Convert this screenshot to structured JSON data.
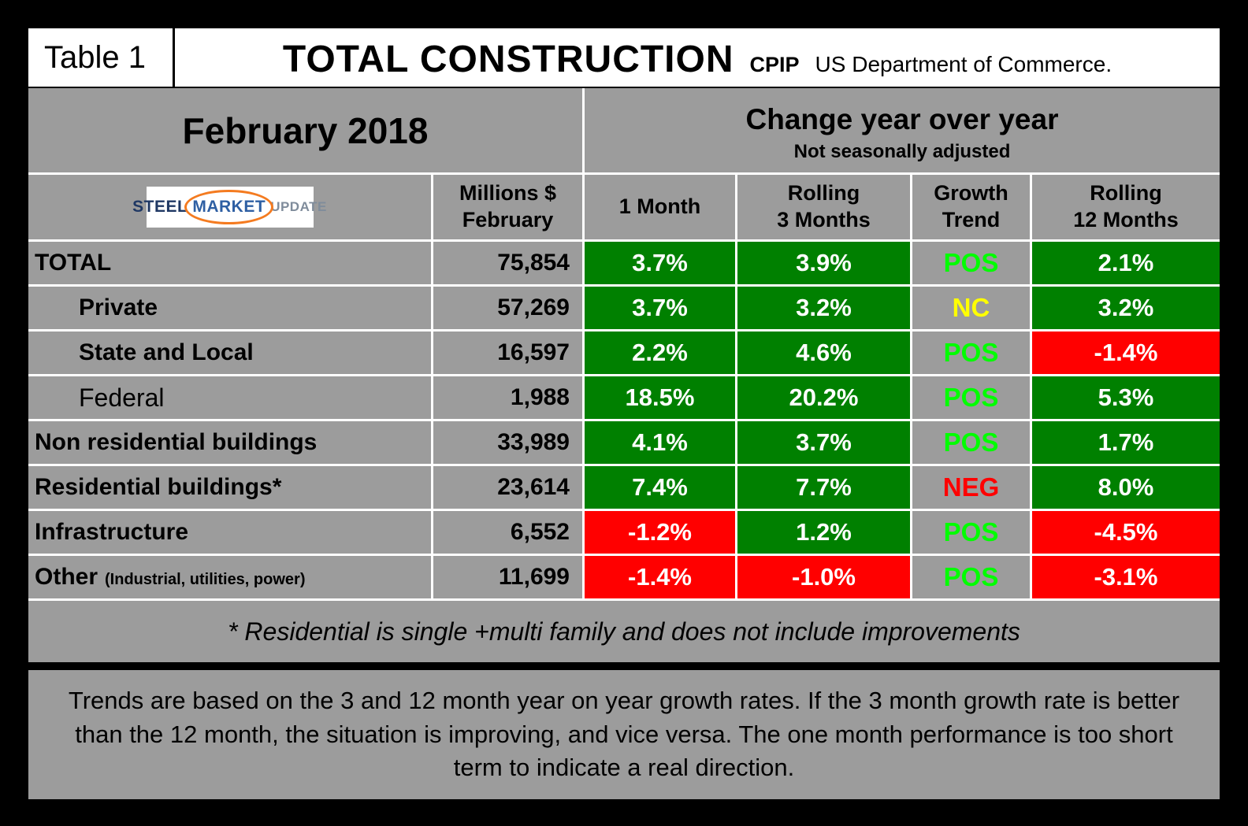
{
  "palette": {
    "gray_bg": "#9C9C9C",
    "green_bg": "#008000",
    "red_bg": "#FF0000",
    "pos_text": "#00FF00",
    "nc_text": "#FFFF00",
    "neg_text": "#FF0000"
  },
  "title_bar": {
    "table_label": "Table 1",
    "title": "TOTAL CONSTRUCTION",
    "code": "CPIP",
    "source": "US Department of Commerce."
  },
  "period_bar": {
    "period": "February 2018",
    "change_title": "Change year over year",
    "change_subtitle": "Not seasonally adjusted"
  },
  "logo": {
    "word1": "STEEL",
    "word2": "MARKET",
    "word3": "UPDATE"
  },
  "column_headers": {
    "millions_line1": "Millions $",
    "millions_line2": "February",
    "m1": "1 Month",
    "m3_line1": "Rolling",
    "m3_line2": "3 Months",
    "trend_line1": "Growth",
    "trend_line2": "Trend",
    "m12_line1": "Rolling",
    "m12_line2": "12 Months"
  },
  "rows": [
    {
      "label": "TOTAL",
      "sublabel": "",
      "indent": false,
      "bold": true,
      "millions": "75,854",
      "m1": {
        "value": "3.7%",
        "bg": "green"
      },
      "m3": {
        "value": "3.9%",
        "bg": "green"
      },
      "trend": {
        "value": "POS",
        "color": "pos"
      },
      "m12": {
        "value": "2.1%",
        "bg": "green"
      }
    },
    {
      "label": "Private",
      "sublabel": "",
      "indent": true,
      "bold": true,
      "millions": "57,269",
      "m1": {
        "value": "3.7%",
        "bg": "green"
      },
      "m3": {
        "value": "3.2%",
        "bg": "green"
      },
      "trend": {
        "value": "NC",
        "color": "nc"
      },
      "m12": {
        "value": "3.2%",
        "bg": "green"
      }
    },
    {
      "label": "State and Local",
      "sublabel": "",
      "indent": true,
      "bold": true,
      "millions": "16,597",
      "m1": {
        "value": "2.2%",
        "bg": "green"
      },
      "m3": {
        "value": "4.6%",
        "bg": "green"
      },
      "trend": {
        "value": "POS",
        "color": "pos"
      },
      "m12": {
        "value": "-1.4%",
        "bg": "red"
      }
    },
    {
      "label": "Federal",
      "sublabel": "",
      "indent": true,
      "bold": false,
      "millions": "1,988",
      "m1": {
        "value": "18.5%",
        "bg": "green"
      },
      "m3": {
        "value": "20.2%",
        "bg": "green"
      },
      "trend": {
        "value": "POS",
        "color": "pos"
      },
      "m12": {
        "value": "5.3%",
        "bg": "green"
      }
    },
    {
      "label": "Non residential buildings",
      "sublabel": "",
      "indent": false,
      "bold": true,
      "millions": "33,989",
      "m1": {
        "value": "4.1%",
        "bg": "green"
      },
      "m3": {
        "value": "3.7%",
        "bg": "green"
      },
      "trend": {
        "value": "POS",
        "color": "pos"
      },
      "m12": {
        "value": "1.7%",
        "bg": "green"
      }
    },
    {
      "label": "Residential buildings*",
      "sublabel": "",
      "indent": false,
      "bold": true,
      "millions": "23,614",
      "m1": {
        "value": "7.4%",
        "bg": "green"
      },
      "m3": {
        "value": "7.7%",
        "bg": "green"
      },
      "trend": {
        "value": "NEG",
        "color": "neg"
      },
      "m12": {
        "value": "8.0%",
        "bg": "green"
      }
    },
    {
      "label": "Infrastructure",
      "sublabel": "",
      "indent": false,
      "bold": true,
      "millions": "6,552",
      "m1": {
        "value": "-1.2%",
        "bg": "red"
      },
      "m3": {
        "value": "1.2%",
        "bg": "green"
      },
      "trend": {
        "value": "POS",
        "color": "pos"
      },
      "m12": {
        "value": "-4.5%",
        "bg": "red"
      }
    },
    {
      "label": "Other",
      "sublabel": "(Industrial, utilities, power)",
      "indent": false,
      "bold": true,
      "millions": "11,699",
      "m1": {
        "value": "-1.4%",
        "bg": "red"
      },
      "m3": {
        "value": "-1.0%",
        "bg": "red"
      },
      "trend": {
        "value": "POS",
        "color": "pos"
      },
      "m12": {
        "value": "-3.1%",
        "bg": "red"
      }
    }
  ],
  "footnote": "* Residential is single +multi family and does not include improvements",
  "note": "Trends are based on the 3 and 12 month year on year growth rates. If the 3 month growth rate is better than the 12 month, the situation is improving, and vice versa. The one month performance is too short term to indicate a real direction.",
  "chart_data": {
    "type": "table",
    "title": "TOTAL CONSTRUCTION CPIP — February 2018",
    "subtitle": "Change year over year, not seasonally adjusted (US Department of Commerce)",
    "columns": [
      "Category",
      "Millions $ February",
      "1 Month",
      "Rolling 3 Months",
      "Growth Trend",
      "Rolling 12 Months"
    ],
    "rows": [
      [
        "TOTAL",
        75854,
        3.7,
        3.9,
        "POS",
        2.1
      ],
      [
        "Private",
        57269,
        3.7,
        3.2,
        "NC",
        3.2
      ],
      [
        "State and Local",
        16597,
        2.2,
        4.6,
        "POS",
        -1.4
      ],
      [
        "Federal",
        1988,
        18.5,
        20.2,
        "POS",
        5.3
      ],
      [
        "Non residential buildings",
        33989,
        4.1,
        3.7,
        "POS",
        1.7
      ],
      [
        "Residential buildings*",
        23614,
        7.4,
        7.7,
        "NEG",
        8.0
      ],
      [
        "Infrastructure",
        6552,
        -1.2,
        1.2,
        "POS",
        -4.5
      ],
      [
        "Other (Industrial, utilities, power)",
        11699,
        -1.4,
        -1.0,
        "POS",
        -3.1
      ]
    ]
  }
}
